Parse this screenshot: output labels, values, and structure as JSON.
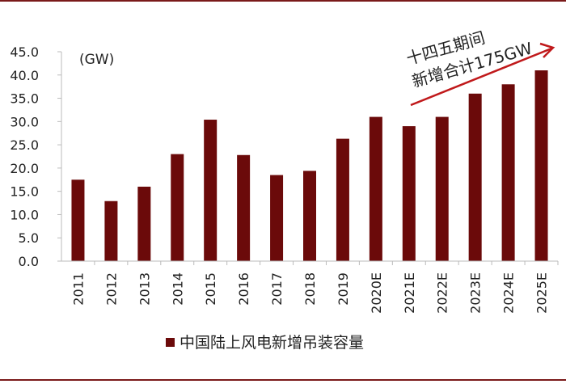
{
  "colors": {
    "bar": "#6b0a0a",
    "frame": "#7a1a1a",
    "arrow": "#c0191b",
    "axis": "#bbbbbb",
    "text": "#222222"
  },
  "chart_data": {
    "type": "bar",
    "categories": [
      "2011",
      "2012",
      "2013",
      "2014",
      "2015",
      "2016",
      "2017",
      "2018",
      "2019",
      "2020E",
      "2021E",
      "2022E",
      "2023E",
      "2024E",
      "2025E"
    ],
    "series": [
      {
        "name": "中国陆上风电新增吊装容量",
        "values": [
          17.5,
          12.9,
          16.0,
          23.0,
          30.4,
          22.8,
          18.5,
          19.4,
          26.3,
          31.0,
          29.0,
          31.0,
          36.0,
          38.0,
          41.0
        ]
      }
    ],
    "yticks": [
      "0.0",
      "5.0",
      "10.0",
      "15.0",
      "20.0",
      "25.0",
      "30.0",
      "35.0",
      "40.0",
      "45.0"
    ],
    "ylim": [
      0,
      45
    ],
    "unit_label": "(GW)",
    "legend_position": "bottom-left",
    "grid": false,
    "annotation": {
      "line1": "十四五期间",
      "line2": "新增合计175GW"
    }
  }
}
